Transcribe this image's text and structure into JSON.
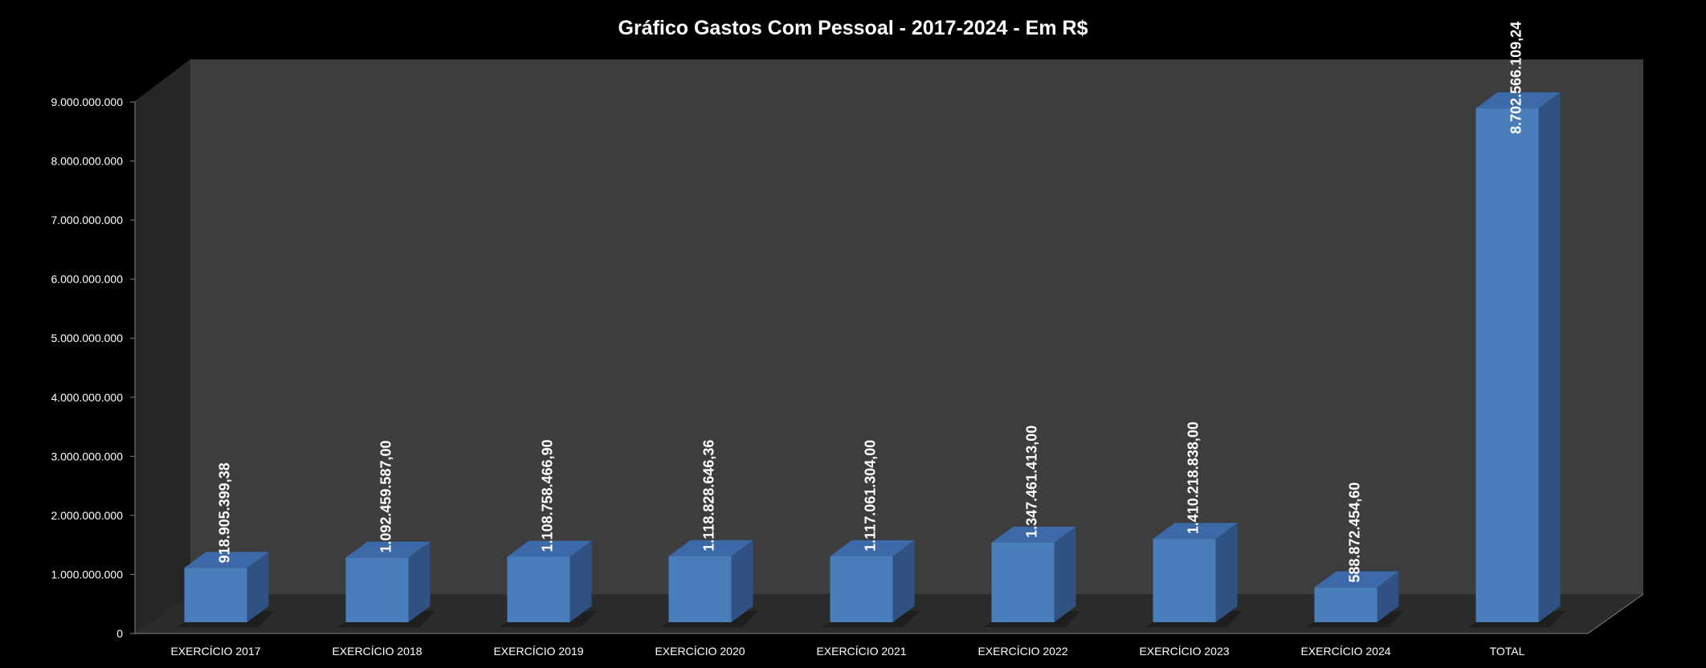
{
  "chart_data": {
    "type": "bar",
    "title": "Gráfico Gastos Com Pessoal - 2017-2024 - Em R$",
    "categories": [
      "EXERCÍCIO 2017",
      "EXERCÍCIO 2018",
      "EXERCÍCIO 2019",
      "EXERCÍCIO 2020",
      "EXERCÍCIO 2021",
      "EXERCÍCIO 2022",
      "EXERCÍCIO 2023",
      "EXERCÍCIO 2024",
      "TOTAL"
    ],
    "values": [
      918905399.38,
      1092459587.0,
      1108758466.9,
      1118828646.36,
      1117061304.0,
      1347461413.0,
      1410218838.0,
      588872454.6,
      8702566109.24
    ],
    "data_labels": [
      "918.905.399,38",
      "1.092.459.587,00",
      "1.108.758.466,90",
      "1.118.828.646,36",
      "1.117.061.304,00",
      "1.347.461.413,00",
      "1.410.218.838,00",
      "588.872.454,60",
      "8.702.566.109,24"
    ],
    "ylim": [
      0,
      9000000000
    ],
    "yticks": [
      0,
      1000000000,
      2000000000,
      3000000000,
      4000000000,
      5000000000,
      6000000000,
      7000000000,
      8000000000,
      9000000000
    ],
    "ytick_labels": [
      "0",
      "1.000.000.000",
      "2.000.000.000",
      "3.000.000.000",
      "4.000.000.000",
      "5.000.000.000",
      "6.000.000.000",
      "7.000.000.000",
      "8.000.000.000",
      "9.000.000.000"
    ],
    "xlabel": "",
    "ylabel": "",
    "grid": false,
    "legend": "none",
    "style": "3d-column",
    "colors": {
      "background": "#000000",
      "plot_wall": "#3d3d3d",
      "side_wall": "#262626",
      "floor": "#2b2b2b",
      "bar_front": "#4a7ebb",
      "bar_top": "#3c6aa8",
      "bar_side": "#2f5283",
      "text": "#ffffff"
    }
  }
}
